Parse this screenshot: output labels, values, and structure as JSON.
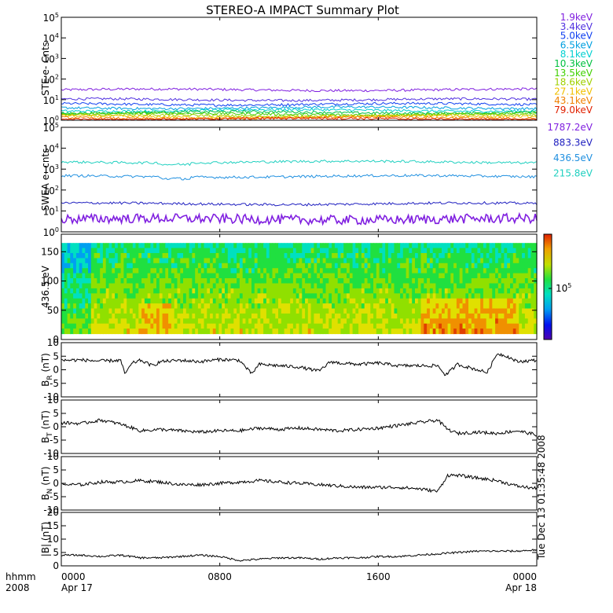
{
  "figure": {
    "title": "STEREO-A IMPACT Summary Plot",
    "timestamp": "Tue Dec 13 01:35:48 2008",
    "x_corner_labels": [
      "hhmm",
      "2008"
    ]
  },
  "chart_data": [
    {
      "id": "ste",
      "type": "line",
      "ylabel": "STE e- Cnts",
      "yscale": "log",
      "ylim": [
        1,
        100000
      ],
      "yticks": [
        "10^0",
        "10^1",
        "10^2",
        "10^3",
        "10^4",
        "10^5"
      ],
      "series": [
        {
          "name": "1.9keV",
          "color": "#8020e0",
          "level": 30
        },
        {
          "name": "3.4keV",
          "color": "#5030e0",
          "level": 10
        },
        {
          "name": "5.0keV",
          "color": "#1040f0",
          "level": 6
        },
        {
          "name": "6.5keV",
          "color": "#00a0e0",
          "level": 4
        },
        {
          "name": "8.1keV",
          "color": "#00d0d0",
          "level": 3
        },
        {
          "name": "10.3keV",
          "color": "#00c040",
          "level": 2.4
        },
        {
          "name": "13.5keV",
          "color": "#40d000",
          "level": 2
        },
        {
          "name": "18.6keV",
          "color": "#a0d000",
          "level": 1.7
        },
        {
          "name": "27.1keV",
          "color": "#f0c000",
          "level": 1.5
        },
        {
          "name": "43.1keV",
          "color": "#f08000",
          "level": 1.3
        },
        {
          "name": "79.0keV",
          "color": "#e02000",
          "level": 1.15
        }
      ]
    },
    {
      "id": "swea",
      "type": "line",
      "ylabel": "SWEA e- cnts",
      "yscale": "log",
      "ylim": [
        1,
        100000
      ],
      "yticks": [
        "10^0",
        "10^1",
        "10^2",
        "10^3",
        "10^4",
        "10^5"
      ],
      "series": [
        {
          "name": "1787.2eV",
          "color": "#8020e0",
          "level": 4
        },
        {
          "name": "883.3eV",
          "color": "#2020c0",
          "level": 22
        },
        {
          "name": "436.5eV",
          "color": "#2090e0",
          "level": 450
        },
        {
          "name": "215.8eV",
          "color": "#20d0c0",
          "level": 2200
        }
      ]
    },
    {
      "id": "pad",
      "type": "heatmap",
      "ylabel": "436.5 eV",
      "ylim": [
        0,
        180
      ],
      "yticks": [
        0,
        50,
        100,
        150
      ],
      "colorbar_label": "10^5"
    },
    {
      "id": "br",
      "type": "line",
      "ylabel": "B_R (nT)",
      "ylim": [
        -10,
        10
      ],
      "yticks": [
        -10,
        -5,
        0,
        5,
        10
      ],
      "x_hours": [
        0,
        1,
        2,
        3,
        3.2,
        3.6,
        4,
        4.6,
        5,
        6,
        7,
        8,
        9,
        9.6,
        10,
        11,
        12,
        13,
        13.6,
        14,
        15,
        16,
        17,
        18,
        19,
        19.4,
        20,
        20.5,
        21,
        21.5,
        22,
        22.5,
        23,
        24
      ],
      "y": [
        3.5,
        3.6,
        3.2,
        3.5,
        -1.5,
        2.5,
        3.5,
        1.5,
        3,
        3.5,
        3,
        3.8,
        3.5,
        -1.5,
        2,
        1.5,
        1,
        -0.5,
        3,
        2.5,
        2,
        2.5,
        1.5,
        1.5,
        1.5,
        -2,
        2,
        1,
        0,
        -1,
        6,
        5,
        3,
        3.5
      ]
    },
    {
      "id": "bt",
      "type": "line",
      "ylabel": "B_T (nT)",
      "ylim": [
        -10,
        10
      ],
      "yticks": [
        -10,
        -5,
        0,
        5,
        10
      ],
      "x_hours": [
        0,
        1,
        2,
        3,
        4,
        5,
        6,
        7,
        8,
        9,
        10,
        11,
        12,
        13,
        14,
        15,
        16,
        17,
        18,
        19,
        19.5,
        20,
        21,
        22,
        23,
        24
      ],
      "y": [
        1.5,
        1.2,
        2.5,
        1,
        -1.5,
        -1,
        -1.5,
        -2,
        -1.5,
        -1.5,
        -0.5,
        -1,
        -0.5,
        -1,
        -1.5,
        -1,
        -0.5,
        0.5,
        1.5,
        2.5,
        -1,
        -2.5,
        -2,
        -2.5,
        -1.5,
        -3
      ]
    },
    {
      "id": "bn",
      "type": "line",
      "ylabel": "B_N (nT)",
      "ylim": [
        -10,
        10
      ],
      "yticks": [
        -10,
        -5,
        0,
        5,
        10
      ],
      "x_hours": [
        0,
        1,
        2,
        3,
        4,
        5,
        6,
        7,
        8,
        9,
        10,
        11,
        12,
        13,
        14,
        15,
        16,
        17,
        18,
        19,
        19.5,
        20,
        21,
        22,
        23,
        24
      ],
      "y": [
        -0.5,
        -0.5,
        0.5,
        0.5,
        1,
        0.5,
        -0.5,
        -0.5,
        0,
        0.5,
        1,
        0.5,
        0,
        -0.5,
        -1,
        -1.5,
        -1.5,
        -1.5,
        -2,
        -3,
        3,
        3,
        2,
        1,
        -1,
        -2
      ]
    },
    {
      "id": "bmag",
      "type": "line",
      "ylabel": "|B| (nT)",
      "ylim": [
        0,
        20
      ],
      "yticks": [
        0,
        5,
        10,
        15,
        20
      ],
      "x_hours": [
        0,
        1,
        2,
        3,
        4,
        5,
        6,
        7,
        8,
        9,
        10,
        11,
        12,
        13,
        14,
        15,
        16,
        17,
        18,
        19,
        20,
        21,
        22,
        23,
        24
      ],
      "y": [
        4,
        4,
        3.5,
        4,
        3,
        3,
        3.5,
        4,
        3.5,
        2,
        2.5,
        3,
        3,
        2.5,
        3,
        3,
        3.5,
        3.5,
        4,
        4.5,
        5,
        5.5,
        5.5,
        5.5,
        6
      ]
    }
  ],
  "x_axis": {
    "ticks": [
      {
        "hour": 0,
        "label": "0000",
        "date": "Apr 17"
      },
      {
        "hour": 8,
        "label": "0800",
        "date": ""
      },
      {
        "hour": 16,
        "label": "1600",
        "date": ""
      },
      {
        "hour": 24,
        "label": "0000",
        "date": "Apr 18"
      }
    ]
  }
}
